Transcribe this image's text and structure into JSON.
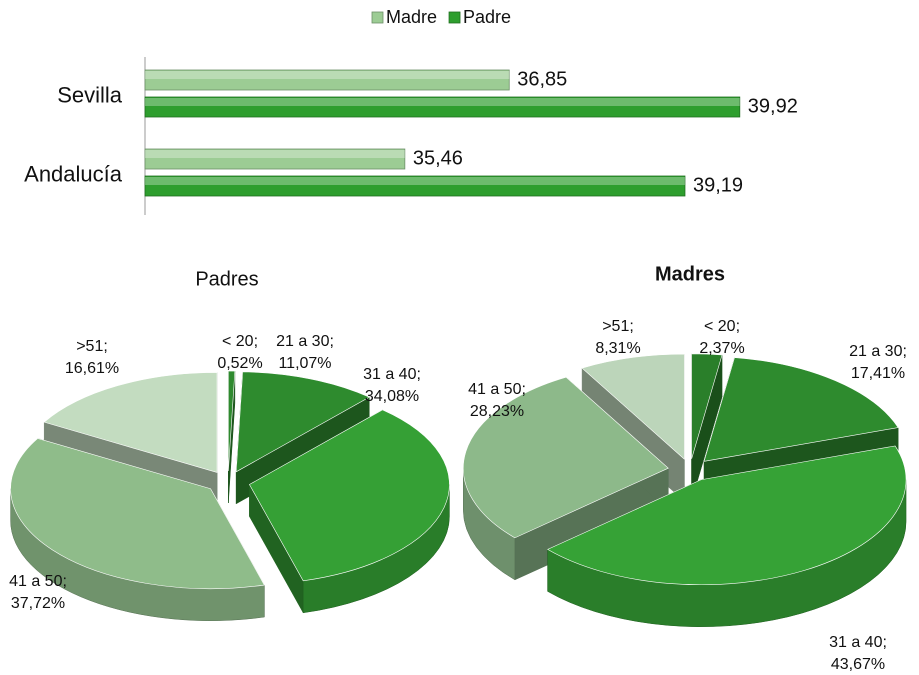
{
  "chart_data": [
    {
      "type": "bar",
      "orientation": "horizontal",
      "categories": [
        "Sevilla",
        "Andalucía"
      ],
      "series": [
        {
          "name": "Madre",
          "color": "#9ccc94",
          "values": [
            36.85,
            35.46
          ],
          "value_labels": [
            "36,85",
            "35,46"
          ]
        },
        {
          "name": "Padre",
          "color": "#2e9e2e",
          "values": [
            39.92,
            39.19
          ],
          "value_labels": [
            "39,92",
            "39,19"
          ]
        }
      ],
      "xlim": [
        32,
        42
      ],
      "legend": "top"
    },
    {
      "type": "pie",
      "title": "Padres",
      "categories": [
        "< 20",
        "21 a 30",
        "31 a 40",
        "41 a 50",
        ">51"
      ],
      "values": [
        0.52,
        11.07,
        34.08,
        37.72,
        16.61
      ],
      "value_labels": [
        "0,52%",
        "11,07%",
        "34,08%",
        "37,72%",
        "16,61%"
      ],
      "colors": [
        "#2f8a2f",
        "#2e8b2e",
        "#35a035",
        "#8fbc8a",
        "#c3dcc0"
      ],
      "label_separator": ";"
    },
    {
      "type": "pie",
      "title": "Madres",
      "categories": [
        "< 20",
        "21 a 30",
        "31 a 40",
        "41 a 50",
        ">51"
      ],
      "values": [
        2.37,
        17.41,
        43.67,
        28.23,
        8.31
      ],
      "value_labels": [
        "2,37%",
        "17,41%",
        "43,67%",
        "28,23%",
        "8,31%"
      ],
      "colors": [
        "#2a7f2a",
        "#2e8b2e",
        "#36a236",
        "#8db98a",
        "#bcd5ba"
      ],
      "label_separator": ";"
    }
  ]
}
